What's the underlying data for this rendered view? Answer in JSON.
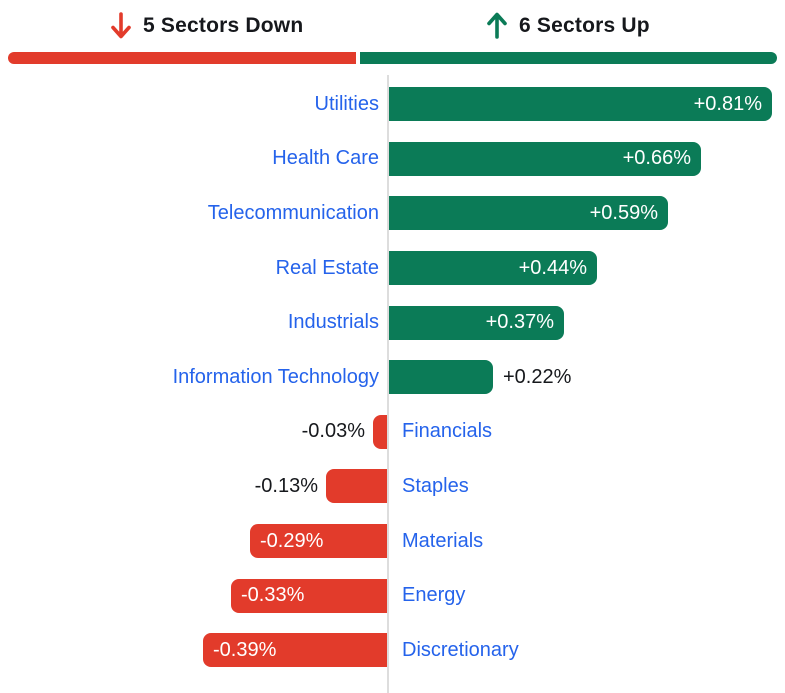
{
  "header": {
    "down_label": "5 Sectors Down",
    "up_label": "6 Sectors Up",
    "down_count": 5,
    "up_count": 6,
    "down_icon": "arrow-down-icon",
    "up_icon": "arrow-up-icon"
  },
  "colors": {
    "up": "#0b7b57",
    "down": "#e23b2b",
    "label_blue": "#2563eb",
    "header_text": "#16181c",
    "baseline": "#dddddd",
    "value_inside": "#ffffff"
  },
  "chart_data": {
    "type": "bar",
    "orientation": "horizontal",
    "value_unit": "%",
    "grid": false,
    "value_labels": true,
    "xlim": [
      -0.45,
      0.84
    ],
    "series": [
      {
        "name": "Utilities",
        "value": 0.81,
        "display": "+0.81%",
        "direction": "up"
      },
      {
        "name": "Health Care",
        "value": 0.66,
        "display": "+0.66%",
        "direction": "up"
      },
      {
        "name": "Telecommunication",
        "value": 0.59,
        "display": "+0.59%",
        "direction": "up"
      },
      {
        "name": "Real Estate",
        "value": 0.44,
        "display": "+0.44%",
        "direction": "up"
      },
      {
        "name": "Industrials",
        "value": 0.37,
        "display": "+0.37%",
        "direction": "up"
      },
      {
        "name": "Information Technology",
        "value": 0.22,
        "display": "+0.22%",
        "direction": "up"
      },
      {
        "name": "Financials",
        "value": -0.03,
        "display": "-0.03%",
        "direction": "down"
      },
      {
        "name": "Staples",
        "value": -0.13,
        "display": "-0.13%",
        "direction": "down"
      },
      {
        "name": "Materials",
        "value": -0.29,
        "display": "-0.29%",
        "direction": "down"
      },
      {
        "name": "Energy",
        "value": -0.33,
        "display": "-0.33%",
        "direction": "down"
      },
      {
        "name": "Discretionary",
        "value": -0.39,
        "display": "-0.39%",
        "direction": "down"
      }
    ]
  }
}
